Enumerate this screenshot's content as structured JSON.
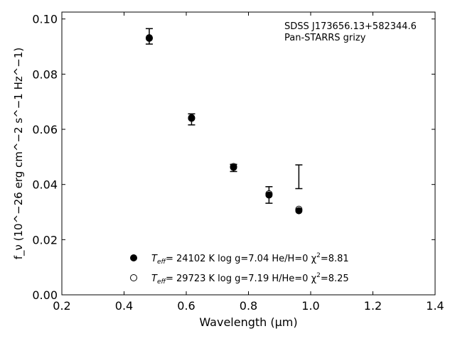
{
  "chart_data": {
    "type": "scatter",
    "xlabel": "Wavelength (μm)",
    "ylabel": "f_ν (10^−26 erg cm^−2 s^−1 Hz^−1)",
    "xlim": [
      0.2,
      1.4
    ],
    "ylim": [
      0.0,
      0.1025
    ],
    "x_ticks": [
      "0.2",
      "0.4",
      "0.6",
      "0.8",
      "1.0",
      "1.2",
      "1.4"
    ],
    "y_ticks": [
      "0.00",
      "0.02",
      "0.04",
      "0.06",
      "0.08",
      "0.10"
    ],
    "grid": false,
    "annotation": [
      "SDSS J173656.13+582344.6",
      "Pan-STARRS grizy"
    ],
    "observed": {
      "x": [
        0.481,
        0.617,
        0.752,
        0.866,
        0.962
      ],
      "y": [
        0.0937,
        0.0636,
        0.046,
        0.0362,
        0.0428
      ],
      "yerr": [
        0.0028,
        0.002,
        0.0013,
        0.003,
        0.0043
      ]
    },
    "series": [
      {
        "marker": "filled-circle",
        "legend": "T_eff= 24102 K  log g=7.04  He/H=0  χ²=8.81",
        "x": [
          0.481,
          0.617,
          0.752,
          0.866,
          0.962
        ],
        "y": [
          0.093,
          0.064,
          0.0462,
          0.0362,
          0.0305
        ]
      },
      {
        "marker": "open-circle",
        "legend": "T_eff= 29723 K  log g=7.19  H/He=0  χ²=8.25",
        "x": [
          0.481,
          0.617,
          0.752,
          0.866,
          0.962
        ],
        "y": [
          0.0932,
          0.0642,
          0.0465,
          0.0366,
          0.031
        ]
      }
    ],
    "legend_items": [
      {
        "sym": "T",
        "sub": "eff",
        "rest": "= 24102 K  log g=7.04  He/H=0  χ",
        "sup": "2",
        "tail": "=8.81"
      },
      {
        "sym": "T",
        "sub": "eff",
        "rest": "= 29723 K  log g=7.19  H/He=0  χ",
        "sup": "2",
        "tail": "=8.25"
      }
    ],
    "legend_position": "lower-center"
  }
}
